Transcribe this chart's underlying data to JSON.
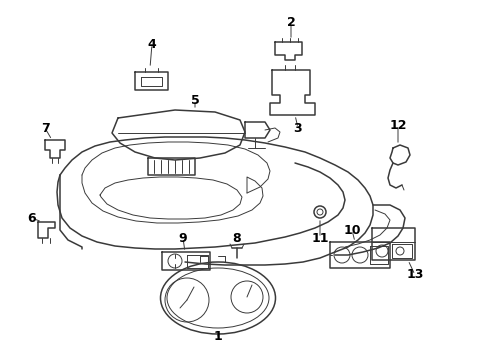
{
  "background_color": "#ffffff",
  "line_color": "#3a3a3a",
  "text_color": "#000000",
  "fig_width": 4.9,
  "fig_height": 3.6,
  "dpi": 100,
  "label_fontsize": 9,
  "leader_lw": 0.7
}
